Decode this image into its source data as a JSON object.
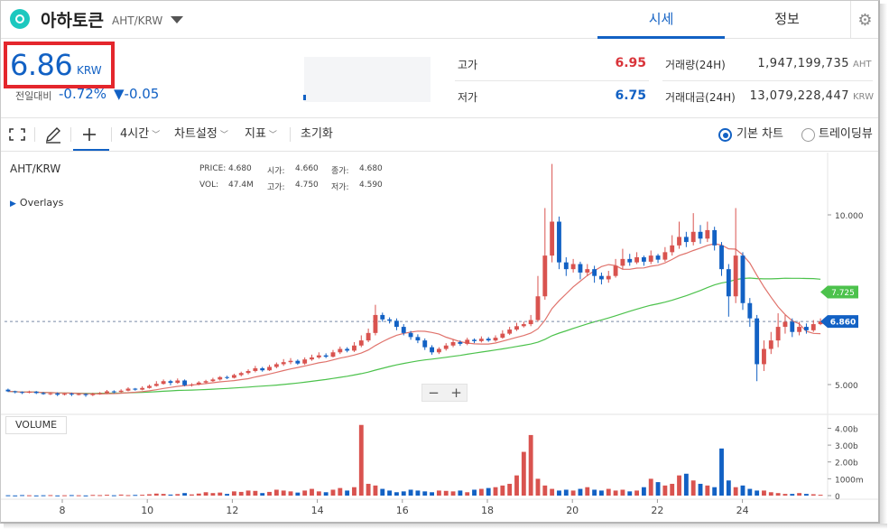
{
  "header": {
    "coin_name": "아하토큰",
    "pair": "AHT/KRW",
    "tabs": [
      "시세",
      "정보"
    ]
  },
  "price": {
    "value": "6.86",
    "unit": "KRW",
    "prev_label": "전일대비",
    "change_rate": "-0.72%",
    "change_diff": "▼-0.05"
  },
  "stats": {
    "high_label": "고가",
    "high_value": "6.95",
    "low_label": "저가",
    "low_value": "6.75",
    "volume_label": "거래량(24H)",
    "volume_value": "1,947,199,735",
    "volume_unit": "AHT",
    "amount_label": "거래대금(24H)",
    "amount_value": "13,079,228,447",
    "amount_unit": "KRW"
  },
  "toolbar": {
    "interval": "4시간",
    "chart_settings": "차트설정",
    "indicators": "지표",
    "reset": "초기화",
    "basic_chart": "기본 차트",
    "tradingview": "트레이딩뷰"
  },
  "chart": {
    "symbol": "AHT/KRW",
    "overlays": "Overlays",
    "legend": {
      "price_label": "PRICE:",
      "price": "4.680",
      "open_label": "시가:",
      "open": "4.660",
      "close_label": "종가:",
      "close": "4.680",
      "vol_label": "VOL:",
      "vol": "47.4M",
      "high_label": "고가:",
      "high": "4.750",
      "low_label": "저가:",
      "low": "4.590"
    },
    "volume_label": "VOLUME",
    "price_ticks": [
      "10.000",
      "5.000"
    ],
    "volume_ticks": [
      "4.00b",
      "3.00b",
      "2.00b",
      "1000m",
      "0"
    ],
    "x_ticks": [
      "8",
      "10",
      "12",
      "14",
      "16",
      "18",
      "20",
      "22",
      "24"
    ],
    "last_price_tag": "6.860",
    "ma_tag": "7.725",
    "zoom_out": "−",
    "zoom_in": "+"
  },
  "colors": {
    "accent": "#1261c4",
    "up": "#d9534f",
    "down": "#1261c4",
    "ma_short": "#e0736c",
    "ma_long": "#4cc24c",
    "highlight_border": "#e4262c"
  },
  "chart_data": {
    "type": "candlestick",
    "x_ticks": [
      "8",
      "10",
      "12",
      "14",
      "16",
      "18",
      "20",
      "22",
      "24"
    ],
    "y_ticks_price": [
      10.0,
      5.0
    ],
    "y_ticks_volume": [
      "4.00b",
      "3.00b",
      "2.00b",
      "1000m",
      "0"
    ],
    "last_price": 6.86,
    "ma_value": 7.725,
    "candles": [
      [
        4.85,
        4.8,
        4.88,
        4.78
      ],
      [
        4.8,
        4.78,
        4.82,
        4.74
      ],
      [
        4.78,
        4.76,
        4.8,
        4.72
      ],
      [
        4.76,
        4.79,
        4.82,
        4.74
      ],
      [
        4.79,
        4.75,
        4.81,
        4.72
      ],
      [
        4.75,
        4.72,
        4.78,
        4.7
      ],
      [
        4.72,
        4.74,
        4.76,
        4.69
      ],
      [
        4.74,
        4.7,
        4.77,
        4.66
      ],
      [
        4.7,
        4.73,
        4.75,
        4.68
      ],
      [
        4.73,
        4.71,
        4.76,
        4.66
      ],
      [
        4.71,
        4.72,
        4.75,
        4.68
      ],
      [
        4.72,
        4.69,
        4.74,
        4.64
      ],
      [
        4.69,
        4.73,
        4.76,
        4.66
      ],
      [
        4.73,
        4.75,
        4.78,
        4.7
      ],
      [
        4.75,
        4.8,
        4.84,
        4.72
      ],
      [
        4.8,
        4.78,
        4.83,
        4.74
      ],
      [
        4.78,
        4.82,
        4.86,
        4.76
      ],
      [
        4.82,
        4.88,
        4.92,
        4.8
      ],
      [
        4.88,
        4.85,
        4.9,
        4.82
      ],
      [
        4.85,
        4.9,
        4.95,
        4.83
      ],
      [
        4.9,
        4.96,
        5.0,
        4.88
      ],
      [
        4.96,
        5.02,
        5.1,
        4.94
      ],
      [
        5.02,
        5.1,
        5.15,
        5.0
      ],
      [
        5.1,
        5.05,
        5.14,
        4.98
      ],
      [
        5.05,
        5.12,
        5.18,
        5.02
      ],
      [
        5.12,
        4.98,
        5.15,
        4.95
      ],
      [
        4.98,
        5.0,
        5.04,
        4.94
      ],
      [
        5.0,
        5.06,
        5.1,
        4.98
      ],
      [
        5.06,
        5.1,
        5.14,
        5.02
      ],
      [
        5.1,
        5.15,
        5.2,
        5.08
      ],
      [
        5.15,
        5.22,
        5.25,
        5.12
      ],
      [
        5.22,
        5.2,
        5.26,
        5.16
      ],
      [
        5.2,
        5.28,
        5.32,
        5.18
      ],
      [
        5.28,
        5.34,
        5.38,
        5.24
      ],
      [
        5.34,
        5.4,
        5.45,
        5.3
      ],
      [
        5.4,
        5.48,
        5.55,
        5.36
      ],
      [
        5.48,
        5.42,
        5.52,
        5.38
      ],
      [
        5.42,
        5.52,
        5.58,
        5.4
      ],
      [
        5.52,
        5.6,
        5.65,
        5.48
      ],
      [
        5.6,
        5.66,
        5.75,
        5.55
      ],
      [
        5.66,
        5.7,
        5.78,
        5.6
      ],
      [
        5.7,
        5.62,
        5.74,
        5.58
      ],
      [
        5.62,
        5.74,
        5.8,
        5.58
      ],
      [
        5.74,
        5.8,
        5.88,
        5.7
      ],
      [
        5.8,
        5.86,
        5.95,
        5.76
      ],
      [
        5.86,
        5.82,
        5.92,
        5.78
      ],
      [
        5.82,
        5.95,
        6.02,
        5.8
      ],
      [
        5.95,
        6.05,
        6.12,
        5.9
      ],
      [
        6.05,
        6.0,
        6.1,
        5.95
      ],
      [
        6.0,
        6.15,
        6.25,
        5.96
      ],
      [
        6.15,
        6.3,
        6.45,
        6.1
      ],
      [
        6.3,
        6.52,
        6.65,
        6.25
      ],
      [
        6.52,
        7.05,
        7.35,
        6.45
      ],
      [
        7.05,
        6.92,
        7.12,
        6.85
      ],
      [
        6.92,
        6.88,
        6.98,
        6.8
      ],
      [
        6.88,
        6.7,
        6.95,
        6.6
      ],
      [
        6.7,
        6.52,
        6.78,
        6.45
      ],
      [
        6.52,
        6.4,
        6.58,
        6.32
      ],
      [
        6.4,
        6.3,
        6.48,
        6.22
      ],
      [
        6.3,
        6.1,
        6.36,
        6.02
      ],
      [
        6.1,
        5.95,
        6.16,
        5.88
      ],
      [
        5.95,
        6.05,
        6.1,
        5.9
      ],
      [
        6.05,
        6.15,
        6.22,
        6.0
      ],
      [
        6.15,
        6.25,
        6.32,
        6.1
      ],
      [
        6.25,
        6.2,
        6.3,
        6.14
      ],
      [
        6.2,
        6.32,
        6.38,
        6.16
      ],
      [
        6.32,
        6.28,
        6.36,
        6.22
      ],
      [
        6.28,
        6.35,
        6.42,
        6.24
      ],
      [
        6.35,
        6.3,
        6.4,
        6.26
      ],
      [
        6.3,
        6.38,
        6.45,
        6.26
      ],
      [
        6.38,
        6.5,
        6.6,
        6.35
      ],
      [
        6.5,
        6.62,
        6.7,
        6.46
      ],
      [
        6.62,
        6.72,
        6.82,
        6.58
      ],
      [
        6.72,
        6.78,
        6.85,
        6.68
      ],
      [
        6.78,
        6.9,
        7.05,
        6.72
      ],
      [
        6.9,
        7.6,
        8.2,
        6.85
      ],
      [
        7.6,
        8.8,
        10.2,
        7.5
      ],
      [
        8.8,
        9.8,
        11.5,
        8.6
      ],
      [
        9.8,
        8.6,
        9.95,
        8.4
      ],
      [
        8.6,
        8.4,
        8.75,
        8.2
      ],
      [
        8.4,
        8.55,
        8.7,
        8.3
      ],
      [
        8.55,
        8.3,
        8.62,
        8.1
      ],
      [
        8.3,
        8.4,
        8.55,
        8.2
      ],
      [
        8.4,
        8.2,
        8.5,
        8.0
      ],
      [
        8.2,
        8.1,
        8.3,
        7.95
      ],
      [
        8.1,
        8.2,
        8.35,
        8.0
      ],
      [
        8.2,
        8.5,
        8.7,
        8.15
      ],
      [
        8.5,
        8.7,
        9.0,
        8.4
      ],
      [
        8.7,
        8.6,
        8.85,
        8.5
      ],
      [
        8.6,
        8.75,
        8.9,
        8.55
      ],
      [
        8.75,
        8.62,
        8.8,
        8.5
      ],
      [
        8.62,
        8.8,
        8.95,
        8.55
      ],
      [
        8.8,
        8.68,
        8.85,
        8.58
      ],
      [
        8.68,
        8.9,
        9.05,
        8.62
      ],
      [
        8.9,
        9.1,
        9.4,
        8.8
      ],
      [
        9.1,
        9.35,
        9.8,
        9.0
      ],
      [
        9.35,
        9.2,
        9.5,
        9.05
      ],
      [
        9.2,
        9.5,
        10.05,
        9.1
      ],
      [
        9.5,
        9.3,
        9.7,
        9.15
      ],
      [
        9.3,
        9.55,
        9.8,
        9.2
      ],
      [
        9.55,
        9.1,
        9.65,
        8.95
      ],
      [
        9.1,
        8.4,
        9.2,
        8.2
      ],
      [
        8.4,
        7.6,
        8.55,
        7.0
      ],
      [
        7.6,
        8.8,
        10.2,
        7.4
      ],
      [
        8.8,
        7.4,
        8.9,
        7.2
      ],
      [
        7.4,
        6.95,
        7.55,
        6.7
      ],
      [
        6.95,
        5.6,
        7.05,
        5.1
      ],
      [
        5.6,
        6.05,
        6.3,
        5.4
      ],
      [
        6.05,
        6.3,
        6.55,
        5.9
      ],
      [
        6.3,
        6.7,
        7.1,
        6.1
      ],
      [
        6.7,
        6.85,
        7.05,
        6.5
      ],
      [
        6.85,
        6.55,
        6.95,
        6.4
      ],
      [
        6.55,
        6.7,
        6.85,
        6.45
      ],
      [
        6.7,
        6.6,
        6.8,
        6.5
      ],
      [
        6.6,
        6.78,
        6.9,
        6.55
      ],
      [
        6.78,
        6.86,
        6.95,
        6.75
      ]
    ],
    "volumes": [
      0.02,
      0.01,
      0.03,
      0.02,
      0.01,
      0.02,
      0.03,
      0.01,
      0.02,
      0.03,
      0.02,
      0.01,
      0.04,
      0.03,
      0.05,
      0.02,
      0.06,
      0.03,
      0.04,
      0.05,
      0.08,
      0.12,
      0.1,
      0.06,
      0.09,
      0.15,
      0.07,
      0.12,
      0.2,
      0.15,
      0.18,
      0.1,
      0.25,
      0.22,
      0.3,
      0.28,
      0.15,
      0.22,
      0.35,
      0.3,
      0.25,
      0.18,
      0.3,
      0.4,
      0.25,
      0.2,
      0.35,
      0.45,
      0.3,
      0.5,
      4.2,
      0.7,
      0.6,
      0.4,
      0.3,
      0.2,
      0.25,
      0.35,
      0.3,
      0.25,
      0.2,
      0.3,
      0.28,
      0.25,
      0.3,
      0.2,
      0.35,
      0.4,
      0.45,
      0.5,
      0.6,
      0.7,
      1.2,
      2.6,
      3.6,
      1.0,
      0.6,
      0.4,
      0.3,
      0.35,
      0.3,
      0.4,
      0.5,
      0.35,
      0.3,
      0.4,
      0.3,
      0.35,
      0.25,
      0.3,
      0.5,
      1.0,
      0.8,
      0.6,
      0.7,
      1.2,
      1.3,
      0.9,
      0.7,
      0.6,
      0.5,
      2.8,
      0.9,
      0.5,
      0.6,
      0.4,
      0.3,
      0.3,
      0.2,
      0.15,
      0.1,
      0.1,
      0.15,
      0.1,
      0.08,
      0.05
    ]
  }
}
